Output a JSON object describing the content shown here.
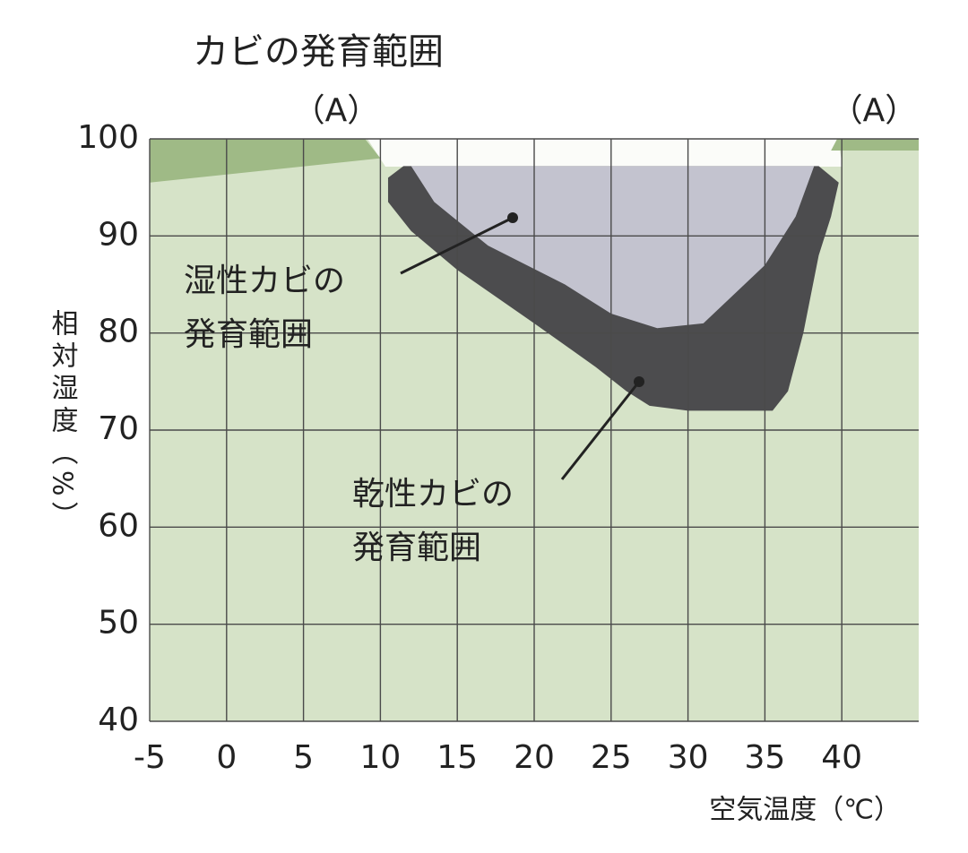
{
  "chart_data": {
    "type": "region",
    "title": "カビの発育範囲",
    "xlabel": "空気温度（℃）",
    "ylabel": "相対湿度（%）",
    "xlim": [
      -5,
      45
    ],
    "ylim": [
      40,
      100
    ],
    "xticks": [
      -5,
      0,
      5,
      10,
      15,
      20,
      25,
      30,
      35,
      40
    ],
    "yticks": [
      40,
      50,
      60,
      70,
      80,
      90,
      100
    ],
    "grid": true,
    "background": "#d6e3c8",
    "series": [
      {
        "label": "（A）",
        "color": "#9fba86",
        "x": [
          -5,
          9,
          10,
          -5
        ],
        "values": [
          100,
          100,
          98,
          95.5
        ]
      },
      {
        "label": "（A）",
        "color": "#9fba86",
        "x": [
          39.7,
          45,
          45,
          39.3
        ],
        "values": [
          100,
          100,
          98.8,
          98.8
        ]
      },
      {
        "label": [
          "乾性カビの",
          "発育範囲"
        ],
        "color": "#4c4c4e",
        "x": [
          11.5,
          38.5,
          39.8,
          39.3,
          38.5,
          37.5,
          36.5,
          35.5,
          30,
          27.5,
          26,
          24,
          20,
          15,
          12,
          10.5,
          10.5
        ],
        "values": [
          97.2,
          97.2,
          95.5,
          92,
          88,
          80,
          74,
          72,
          72,
          72.5,
          74,
          76.5,
          81,
          86.5,
          90.5,
          93.5,
          96
        ]
      },
      {
        "label": [
          "湿性カビの",
          "発育範囲"
        ],
        "color": "#c3c3cf",
        "x": [
          12,
          38.2,
          37,
          35,
          33,
          31,
          28,
          25,
          22,
          17,
          13.5
        ],
        "values": [
          97.2,
          97.2,
          92,
          87,
          84,
          81,
          80.5,
          82,
          85,
          89,
          93.5
        ]
      }
    ]
  }
}
